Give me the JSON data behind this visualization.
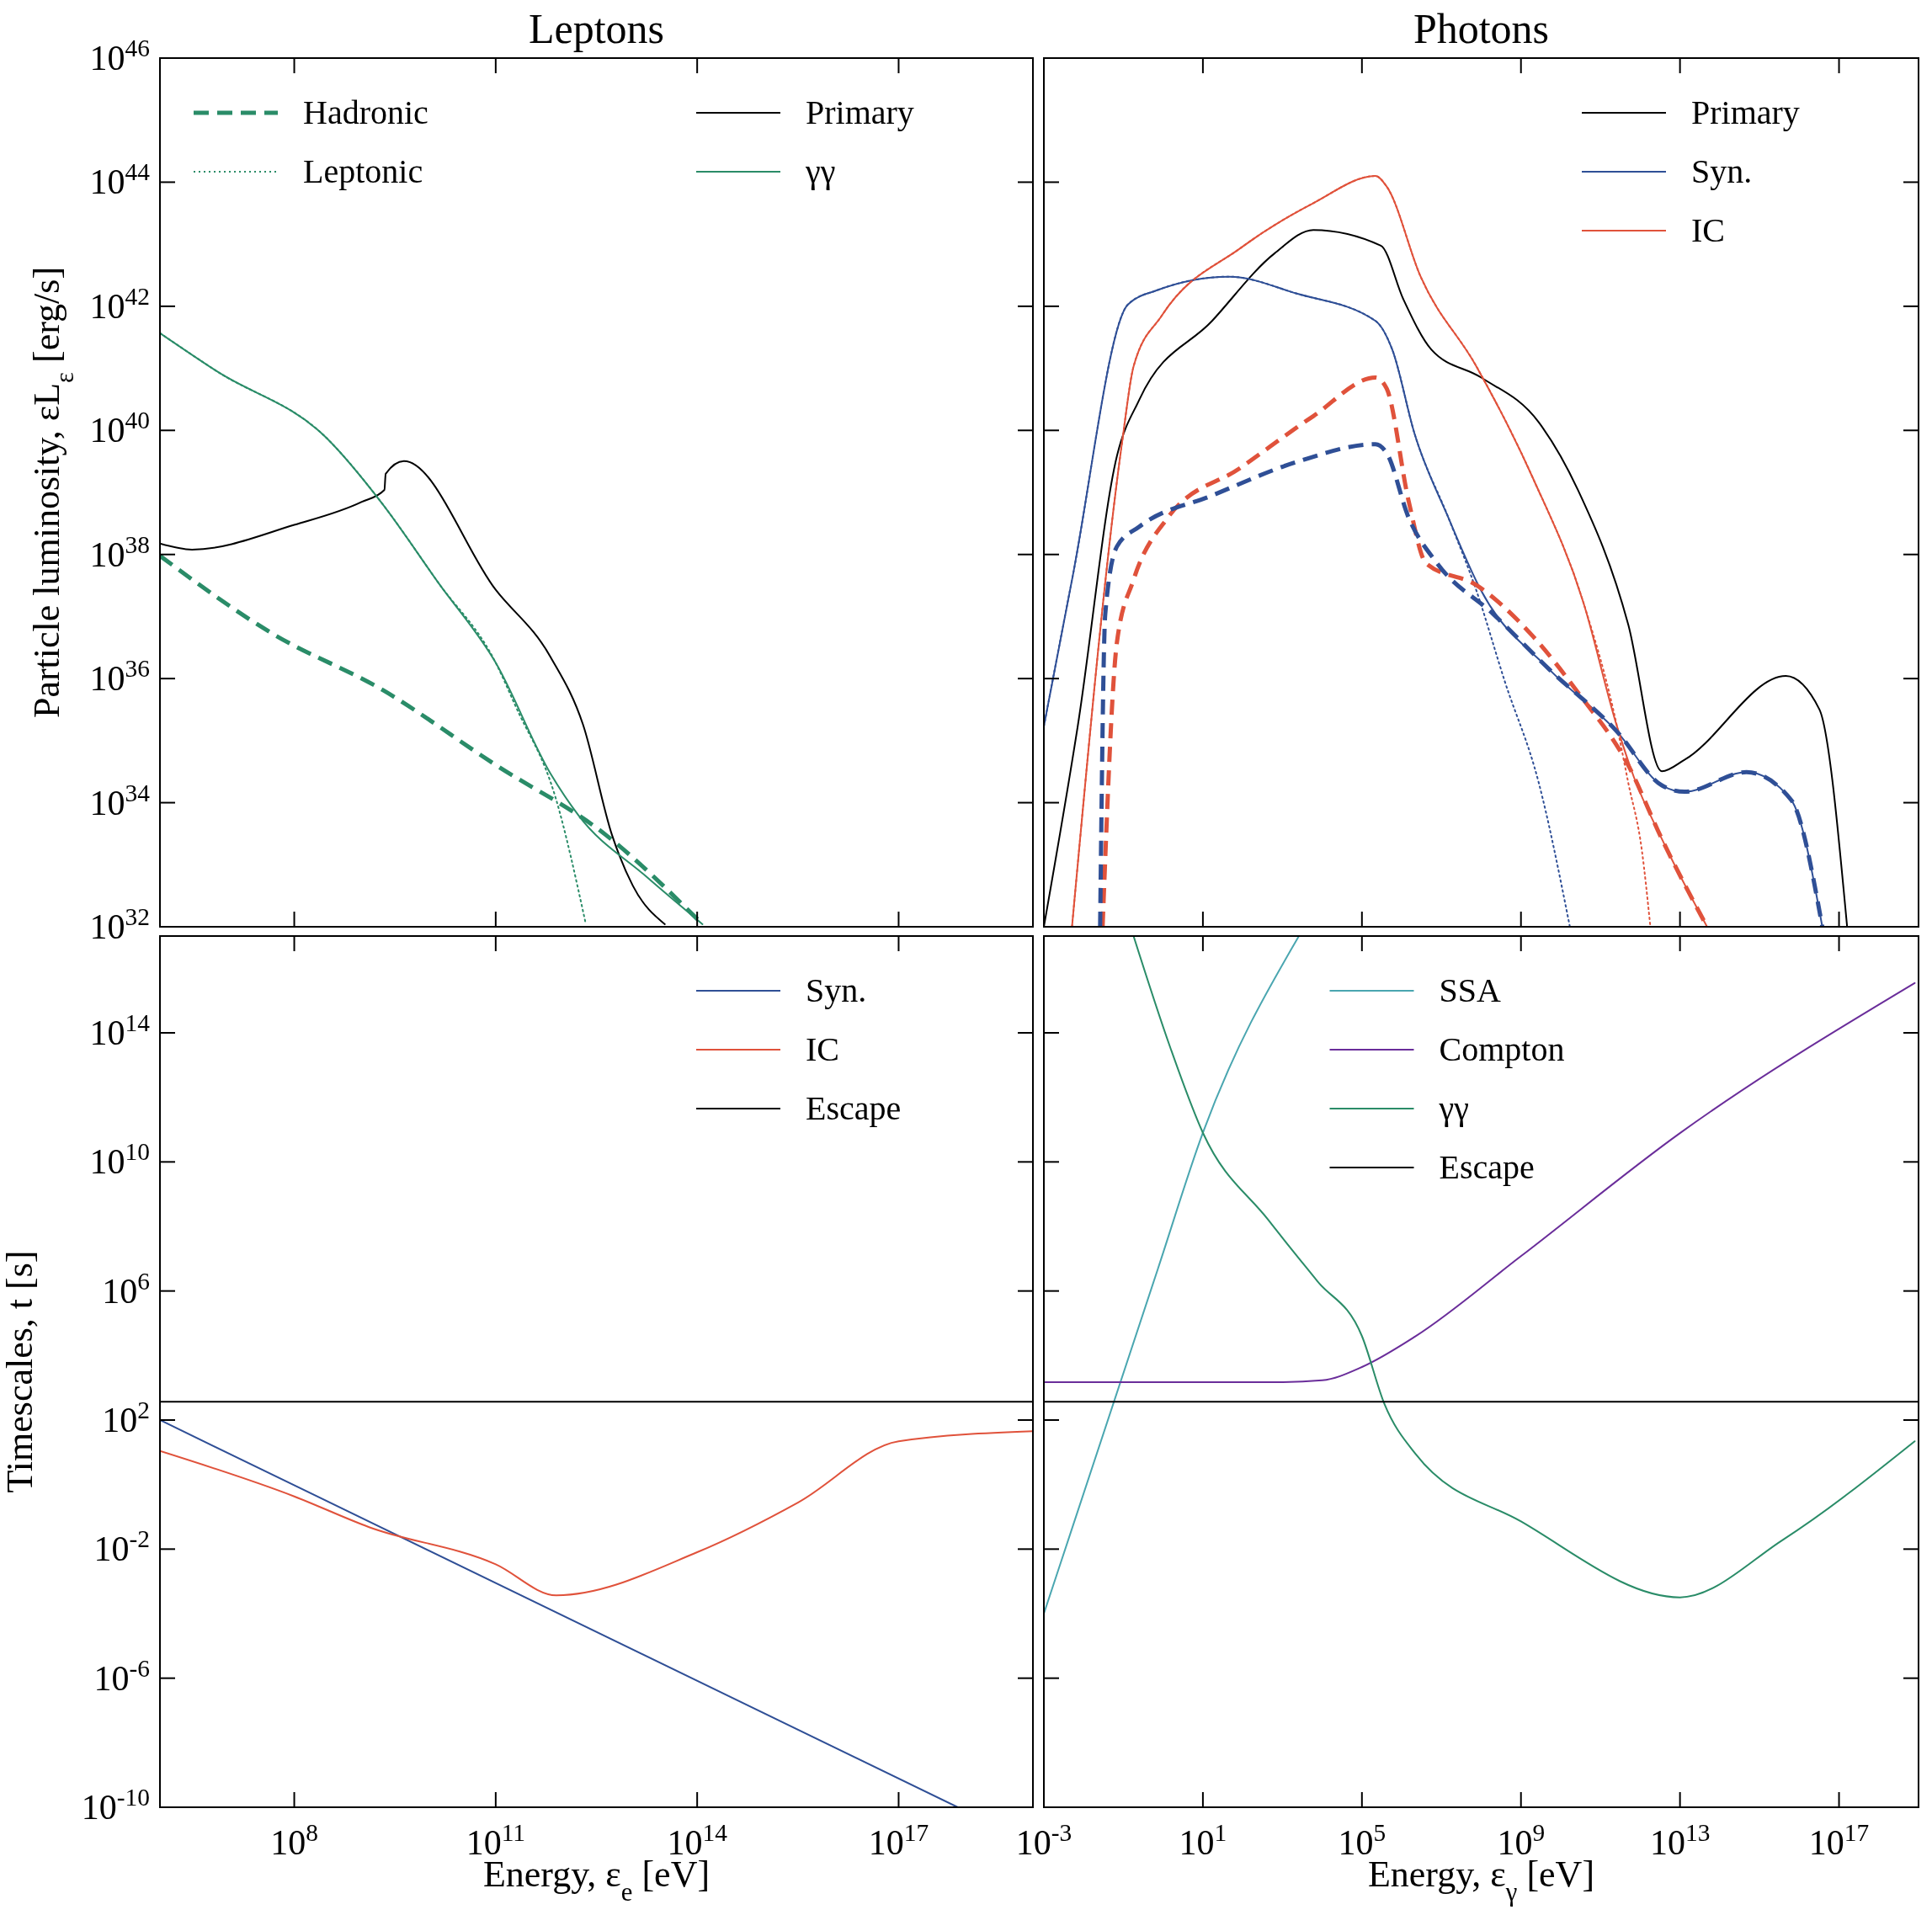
{
  "chart_data": [
    {
      "type": "line",
      "title": "Leptons",
      "ylabel": "Particle luminosity, εL$_{ε}$ [erg/s]",
      "log": "xy",
      "legend": "top",
      "tick_labels": "y",
      "xlim": [
        1000000.0,
        1e+19
      ],
      "ylim": [
        1e+32,
        1e+46
      ],
      "xticks": [
        100000000.0,
        100000000000.0,
        100000000000000.0,
        1e+17
      ],
      "yticks": [
        {
          "value": 1e+32,
          "label": "10$^{32}$"
        },
        {
          "value": 1e+34,
          "label": "10$^{34}$"
        },
        {
          "value": 1e+36,
          "label": "10$^{36}$"
        },
        {
          "value": 1e+38,
          "label": "10$^{38}$"
        },
        {
          "value": 1e+40,
          "label": "10$^{40}$"
        },
        {
          "value": 1e+42,
          "label": "10$^{42}$"
        },
        {
          "value": 1e+44,
          "label": "10$^{44}$"
        },
        {
          "value": 1e+46,
          "label": "10$^{46}$"
        }
      ],
      "series": [
        {
          "name": "Hadronic",
          "color": "#2a8c68",
          "line_style": "dashed",
          "x": [
            1000000.0,
            46000000.0,
            2100000000.0,
            95000000000.0,
            4400000000000.0,
            120000000000000.0
          ],
          "values": [
            9.5e+37,
            5.4e+36,
            6.5e+35,
            4.2e+34,
            3e+33,
            1.1e+32
          ]
        },
        {
          "name": "Leptonic",
          "color": "#2a8c68",
          "line_style": "dotted",
          "x": [
            1000000.0,
            7000000.0,
            300000000.0,
            2000000000.0,
            14000000000.0,
            100000000000.0,
            200000000000.0,
            780000000000.0,
            2200000000000.0
          ],
          "values": [
            3.7e+41,
            9e+40,
            7.6e+39,
            6.8e+38,
            3.5e+37,
            1.8e+36,
            3.5e+35,
            1.2e+34,
            1.1e+32
          ]
        },
        {
          "name": "Primary",
          "color": "#000000",
          "line_style": "solid",
          "x": [
            1000000.0,
            3000000.0,
            100000000.0,
            1000000000.0,
            2200000000.0,
            2300000000.0,
            4300000000.0,
            100000000000.0,
            660000000000.0,
            2000000000000.0,
            5400000000000.0,
            11000000000000.0,
            33000000000000.0
          ],
          "values": [
            1.5e+38,
            1.2e+38,
            3e+38,
            7e+38,
            1.1e+39,
            2e+39,
            3.2e+39,
            2.7e+37,
            2.2e+36,
            1.8e+35,
            3e+33,
            4.6e+32,
            1.1e+32
          ]
        },
        {
          "name": "γγ",
          "color": "#2a8c68",
          "line_style": "solid",
          "x": [
            1000000.0,
            7000000.0,
            300000000.0,
            2000000000.0,
            14000000000.0,
            100000000000.0,
            660000000000.0,
            1700000000000.0,
            17000000000000.0,
            120000000000000.0
          ],
          "values": [
            3.7e+41,
            9e+40,
            7.6e+39,
            6.8e+38,
            3.5e+37,
            1.8e+36,
            2.9e+34,
            6.3e+33,
            6.6e+32,
            1.1e+32
          ]
        }
      ]
    },
    {
      "type": "line",
      "title": "Photons",
      "log": "xy",
      "legend": "top right",
      "tick_labels": false,
      "xlim": [
        0.001,
        1e+19
      ],
      "ylim": [
        1e+32,
        1e+46
      ],
      "xticks": [
        0.001,
        10.0,
        100000.0,
        1000000000.0,
        10000000000000.0,
        1e+17
      ],
      "yticks": [
        1e+32,
        1e+34,
        1e+36,
        1e+38,
        1e+40,
        1e+42,
        1e+44,
        1e+46
      ],
      "series": [
        {
          "name": "Primary",
          "color": "#000000",
          "line_style": "solid",
          "x": [
            0.001,
            0.0071,
            0.069,
            0.25,
            17,
            630,
            6000.0,
            300000.0,
            1100000.0,
            5600000.0,
            100000000.0,
            2800000000.0,
            27000000000.0,
            500000000000.0,
            3500000000000.0,
            13000000000000.0,
            4600000000000000.0,
            3.2e+16,
            1.6e+17
          ],
          "values": [
            1e+32,
            1.7e+35,
            3.9e+39,
            3.1e+40,
            5.8e+41,
            7.1e+42,
            1.7e+43,
            9.5e+42,
            1.3e+42,
            2e+41,
            7.1e+40,
            1.35e+40,
            1.1e+39,
            7.4e+36,
            3.2e+34,
            4.9e+34,
            1.1e+36,
            3.2e+35,
            1e+32
          ]
        },
        {
          "name": "Syn.",
          "color": "#2f4f96",
          "line_style": "solid",
          "x": [
            0.001,
            0.0051,
            0.13,
            0.68,
            46,
            2300.0,
            220000.0,
            580000.0,
            2100000.0,
            15000000.0,
            100000000.0,
            5200000000.0,
            260000000000.0,
            3500000000000.0,
            13000000000000.0,
            470000000000000.0,
            6300000000000000.0,
            3.8e+16
          ],
          "values": [
            1.7e+35,
            3.9e+37,
            1.07e+42,
            1.8e+42,
            3e+42,
            1.6e+42,
            5.8e+41,
            2e+41,
            8.9e+39,
            3.9e+38,
            2.6e+37,
            1.4e+36,
            1.4e+35,
            1.9e+34,
            1.5e+34,
            3.1e+34,
            1.1e+34,
            1e+32
          ]
        },
        {
          "name": "IC",
          "color": "#e0523b",
          "line_style": "solid",
          "x": [
            0.0051,
            0.095,
            0.18,
            0.93,
            89,
            6000.0,
            220000.0,
            420000.0,
            3000000.0,
            76000000.0,
            2000000000.0,
            37000000000.0,
            260000000000.0,
            690000000000.0,
            3500000000000.0,
            48000000000000.0
          ],
          "values": [
            1e+32,
            7.2e+39,
            1.07e+41,
            7.1e+41,
            8.7e+42,
            4.6e+43,
            1.26e+44,
            8.5e+43,
            3e+42,
            1.07e+41,
            1.7e+39,
            1.7e+37,
            1.7e+35,
            2.6e+34,
            2.6e+33,
            1e+32
          ]
        },
        {
          "color": "#2f4f96",
          "line_style": "dotted",
          "x": [
            0.001,
            0.0051,
            0.13,
            0.68,
            46,
            2300.0,
            220000.0,
            580000.0,
            2100000.0,
            15000000.0,
            76000000.0,
            390000000.0,
            2800000000.0,
            17000000000.0
          ],
          "values": [
            1.7e+35,
            3.9e+37,
            1.07e+42,
            1.8e+42,
            3e+42,
            1.6e+42,
            5.8e+41,
            2e+41,
            8.9e+39,
            3.9e+38,
            2.6e+37,
            9.1e+35,
            2.1e+34,
            1e+32
          ]
        },
        {
          "color": "#e0523b",
          "line_style": "dotted",
          "x": [
            0.0051,
            0.095,
            0.18,
            0.93,
            89,
            6000.0,
            220000.0,
            420000.0,
            3000000.0,
            76000000.0,
            2000000000.0,
            37000000000.0,
            260000000000.0,
            500000000000.0,
            1100000000000.0,
            1800000000000.0
          ],
          "values": [
            1e+32,
            7.2e+39,
            1.07e+41,
            7.1e+41,
            8.7e+42,
            4.6e+43,
            1.26e+44,
            8.5e+43,
            3e+42,
            1.07e+41,
            1.7e+39,
            1.7e+37,
            1.7e+35,
            2.1e+34,
            1.7e+33,
            1e+32
          ]
        },
        {
          "color": "#e0523b",
          "line_style": "dashed",
          "x": [
            0.03,
            0.069,
            0.18,
            1.3,
            89,
            6000.0,
            220000.0,
            420000.0,
            1500000.0,
            4100000.0,
            76000000.0,
            2000000000.0,
            27000000000.0,
            500000000000.0,
            3500000000000.0,
            48000000000000.0
          ],
          "values": [
            1e+32,
            3.9e+36,
            3.9e+37,
            3.9e+38,
            2.5e+39,
            1.7e+40,
            7.1e+40,
            4.7e+40,
            7.2e+38,
            7.2e+37,
            3.2e+37,
            4.8e+36,
            6e+35,
            4e+34,
            2.6e+33,
            1e+32
          ]
        },
        {
          "color": "#2f4f96",
          "line_style": "dashed",
          "x": [
            0.026,
            0.035,
            0.069,
            0.25,
            17,
            2300.0,
            220000.0,
            420000.0,
            1500000.0,
            7800000.0,
            200000000.0,
            5200000000.0,
            260000000000.0,
            3500000000000.0,
            13000000000000.0,
            470000000000000.0,
            6300000000000000.0,
            3.8e+16
          ],
          "values": [
            1e+32,
            1.1e+37,
            1.35e+38,
            2.8e+38,
            8.9e+38,
            3.1e+39,
            6e+39,
            4.3e+39,
            3.9e+38,
            7.2e+37,
            1.1e+37,
            1.4e+36,
            1.4e+35,
            1.9e+34,
            1.5e+34,
            3.1e+34,
            1.1e+34,
            1e+32
          ]
        }
      ]
    },
    {
      "type": "line",
      "xlabel": "Energy, ε$_{e}$ [eV]",
      "ylabel": "Timescales, t [s]",
      "log": "xy",
      "legend": "top right",
      "xlim": [
        1000000.0,
        1e+19
      ],
      "ylim": [
        1e-10,
        1e+17
      ],
      "xticks": [
        {
          "value": 100000000.0,
          "label": "10$^{8}$"
        },
        {
          "value": 100000000000.0,
          "label": "10$^{11}$"
        },
        {
          "value": 100000000000000.0,
          "label": "10$^{14}$"
        },
        {
          "value": 1e+17,
          "label": "10$^{17}$"
        }
      ],
      "yticks": [
        {
          "value": 1e-10,
          "label": "10$^{-10}$"
        },
        {
          "value": 1e-06,
          "label": "10$^{-6}$"
        },
        {
          "value": 0.01,
          "label": "10$^{-2}$"
        },
        {
          "value": 100.0,
          "label": "10$^{2}$"
        },
        {
          "value": 1000000.0,
          "label": "10$^{6}$"
        },
        {
          "value": 10000000000.0,
          "label": "10$^{10}$"
        },
        {
          "value": 100000000000000.0,
          "label": "10$^{14}$"
        }
      ],
      "series": [
        {
          "name": "Syn.",
          "color": "#2f4f96",
          "line_style": "solid",
          "x": [
            1000000.0,
            7.6e+17
          ],
          "values": [
            100.0,
            1e-10
          ]
        },
        {
          "name": "IC",
          "color": "#e0523b",
          "line_style": "solid",
          "x": [
            1000000.0,
            100000000.0,
            1300000000.0,
            100000000000.0,
            800000000000.0,
            100000000000000.0,
            3200000000000000.0,
            1e+17,
            1e+19
          ],
          "values": [
            11,
            0.43,
            0.048,
            0.0034,
            0.00037,
            0.008,
            0.28,
            22,
            45
          ]
        },
        {
          "name": "Escape",
          "color": "#000000",
          "line_style": "solid",
          "x": [
            1000000.0,
            1e+19
          ],
          "values": [
            370,
            370
          ]
        }
      ]
    },
    {
      "type": "line",
      "xlabel": "Energy, ε$_{γ}$ [eV]",
      "log": "xy",
      "legend": "top",
      "tick_labels": "x",
      "xlim": [
        0.001,
        1e+19
      ],
      "ylim": [
        1e-10,
        1e+17
      ],
      "xticks": [
        {
          "value": 0.001,
          "label": "10$^{-3}$"
        },
        {
          "value": 10.0,
          "label": "10$^{1}$"
        },
        {
          "value": 100000.0,
          "label": "10$^{5}$"
        },
        {
          "value": 1000000000.0,
          "label": "10$^{9}$"
        },
        {
          "value": 10000000000000.0,
          "label": "10$^{13}$"
        },
        {
          "value": 1e+17,
          "label": "10$^{17}$"
        }
      ],
      "yticks": [
        1e-10,
        1e-06,
        0.01,
        100.0,
        1000000.0,
        10000000000.0,
        100000000000000.0
      ],
      "series": [
        {
          "name": "SSA",
          "color": "#4aa6b0",
          "line_style": "solid",
          "x": [
            0.001,
            0.74,
            10,
            2600.0
          ],
          "values": [
            0.0001,
            4900000.0,
            80000000000.0,
            1e+17
          ]
        },
        {
          "name": "Compton",
          "color": "#6a2d9a",
          "line_style": "solid",
          "x": [
            0.001,
            1000.0,
            10000.0,
            100000.0,
            2200000.0,
            1000000000.0,
            10000000000000.0,
            8e+18
          ],
          "values": [
            1500.0,
            1500.0,
            1700.0,
            4400.0,
            39000.0,
            12000000.0,
            78000000000.0,
            3500000000000000.0
          ]
        },
        {
          "name": "γγ",
          "color": "#2a8c68",
          "line_style": "solid",
          "x": [
            0.18,
            1.5,
            10,
            440,
            7600.0,
            100000.0,
            370000.0,
            2200000.0,
            1000000000.0,
            10000000000000.0,
            4000000000000000.0,
            8e+18
          ],
          "values": [
            1e+17,
            36000000000000.0,
            80000000000.0,
            160000000.0,
            2000000.0,
            40000.0,
            310,
            9.1,
            0.072,
            0.00032,
            0.02,
            22
          ]
        },
        {
          "name": "Escape",
          "color": "#000000",
          "line_style": "solid",
          "x": [
            0.001,
            1e+19
          ],
          "values": [
            370,
            370
          ]
        }
      ]
    }
  ]
}
